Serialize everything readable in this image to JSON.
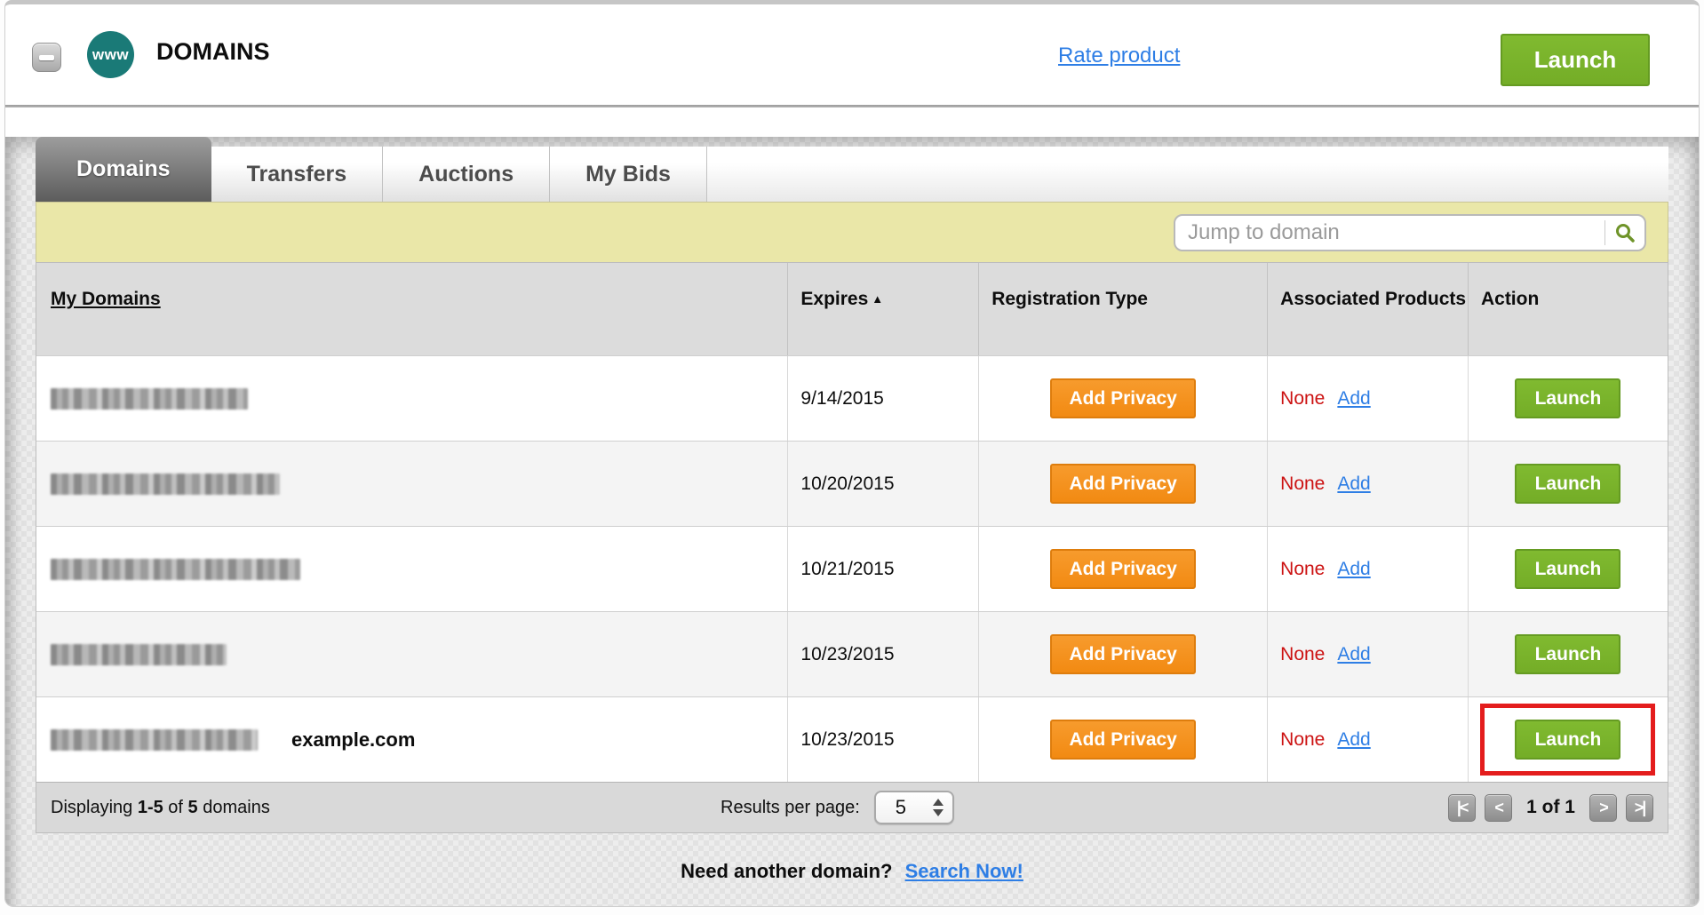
{
  "header": {
    "title": "DOMAINS",
    "www_badge": "www",
    "rate_product_link": "Rate product",
    "launch_button": "Launch"
  },
  "tabs": {
    "items": [
      {
        "label": "Domains",
        "active": true
      },
      {
        "label": "Transfers",
        "active": false
      },
      {
        "label": "Auctions",
        "active": false
      },
      {
        "label": "My Bids",
        "active": false
      }
    ]
  },
  "search": {
    "placeholder": "Jump to domain",
    "icon": "magnifier-icon"
  },
  "table": {
    "headers": {
      "domains": "My Domains",
      "expires": "Expires",
      "sort_arrow": "▲",
      "registration": "Registration Type",
      "associated": "Associated Products",
      "action": "Action"
    },
    "rows": [
      {
        "redacted_domain_width": 222,
        "domain_label": "",
        "expires": "9/14/2015",
        "registration_button": "Add Privacy",
        "associated_value": "None",
        "associated_link": "Add",
        "action_button": "Launch",
        "highlighted": false
      },
      {
        "redacted_domain_width": 258,
        "domain_label": "",
        "expires": "10/20/2015",
        "registration_button": "Add Privacy",
        "associated_value": "None",
        "associated_link": "Add",
        "action_button": "Launch",
        "highlighted": false
      },
      {
        "redacted_domain_width": 281,
        "domain_label": "",
        "expires": "10/21/2015",
        "registration_button": "Add Privacy",
        "associated_value": "None",
        "associated_link": "Add",
        "action_button": "Launch",
        "highlighted": false
      },
      {
        "redacted_domain_width": 198,
        "domain_label": "",
        "expires": "10/23/2015",
        "registration_button": "Add Privacy",
        "associated_value": "None",
        "associated_link": "Add",
        "action_button": "Launch",
        "highlighted": false
      },
      {
        "redacted_domain_width": 233,
        "domain_label": "example.com",
        "expires": "10/23/2015",
        "registration_button": "Add Privacy",
        "associated_value": "None",
        "associated_link": "Add",
        "action_button": "Launch",
        "highlighted": true
      }
    ]
  },
  "footer": {
    "displaying_prefix": "Displaying",
    "displaying_range": "1-5",
    "displaying_of": "of",
    "displaying_total": "5",
    "displaying_suffix": "domains",
    "results_per_page_label": "Results per page:",
    "results_per_page_value": "5",
    "page_indicator": "1 of 1",
    "pagination": {
      "first": "|<",
      "prev": "<",
      "next": ">",
      "last": ">|"
    }
  },
  "bottom_prompt": {
    "text": "Need another domain?",
    "link": "Search Now!"
  },
  "colors": {
    "accent_green": "#7ab52a",
    "accent_orange": "#f6911e",
    "brand_teal": "#1a7a77",
    "link_blue": "#2e7ee5",
    "alert_red": "#cc1212",
    "highlight_red": "#e41d1d",
    "bar_yellow": "#eae7a8"
  }
}
